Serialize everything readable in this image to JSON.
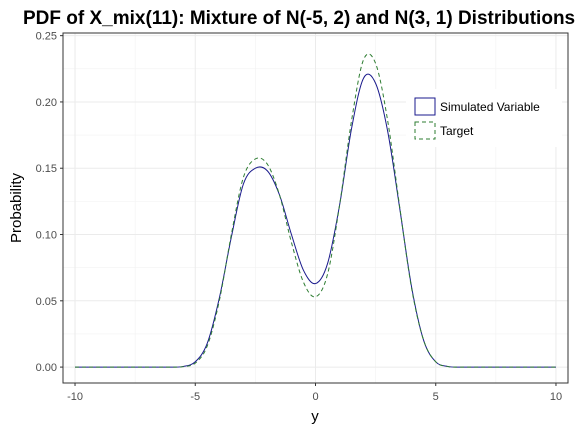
{
  "chart_data": {
    "type": "line",
    "title": "PDF of X_mix(11): Mixture of N(-5, 2) and N(3, 1) Distributions",
    "xlabel": "y",
    "ylabel": "Probability",
    "xlim": [
      -10.5,
      10.5
    ],
    "ylim": [
      -0.012,
      0.252
    ],
    "x_ticks": [
      "-10",
      "-5",
      "0",
      "5",
      "10"
    ],
    "x_tick_values": [
      -10,
      -5,
      0,
      5,
      10
    ],
    "y_ticks": [
      "0.00",
      "0.05",
      "0.10",
      "0.15",
      "0.20",
      "0.25"
    ],
    "y_tick_values": [
      0,
      0.05,
      0.1,
      0.15,
      0.2,
      0.25
    ],
    "grid": true,
    "legend_position": "right",
    "x": [
      -10,
      -9,
      -8,
      -7,
      -6,
      -5.5,
      -5,
      -4.5,
      -4,
      -3.5,
      -3,
      -2.5,
      -2,
      -1.5,
      -1,
      -0.5,
      0,
      0.5,
      1,
      1.5,
      2,
      2.5,
      3,
      3.5,
      4,
      4.5,
      5,
      5.5,
      6,
      7,
      8,
      9,
      10
    ],
    "series": [
      {
        "name": "Simulated Variable",
        "color": "#1a1a8c",
        "dash": "solid",
        "values": [
          0,
          0,
          0,
          0,
          0,
          0.0005,
          0.004,
          0.018,
          0.052,
          0.098,
          0.138,
          0.15,
          0.148,
          0.13,
          0.1,
          0.073,
          0.063,
          0.078,
          0.122,
          0.18,
          0.218,
          0.214,
          0.178,
          0.12,
          0.06,
          0.02,
          0.004,
          0.0005,
          0,
          0,
          0,
          0,
          0
        ]
      },
      {
        "name": "Target",
        "color": "#2e7d32",
        "dash": "dashed",
        "values": [
          0,
          0,
          0,
          0,
          0,
          0.0003,
          0.003,
          0.016,
          0.05,
          0.1,
          0.143,
          0.157,
          0.153,
          0.13,
          0.094,
          0.064,
          0.053,
          0.07,
          0.122,
          0.186,
          0.232,
          0.229,
          0.186,
          0.121,
          0.059,
          0.02,
          0.004,
          0.0004,
          0,
          0,
          0,
          0,
          0
        ]
      }
    ]
  }
}
